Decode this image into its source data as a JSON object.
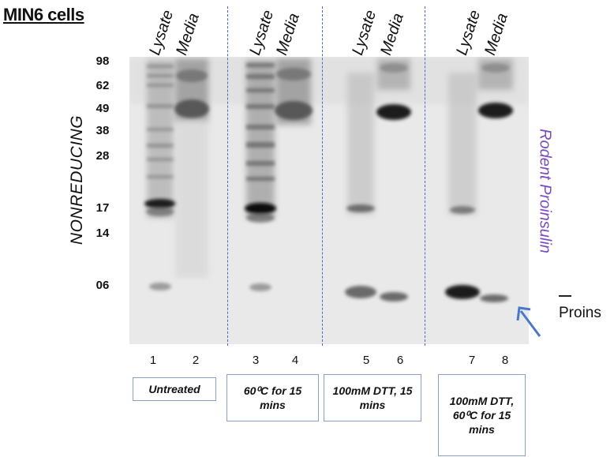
{
  "title": "MIN6 cells",
  "lane_headers": [
    {
      "lane": 1,
      "label": "Lysate"
    },
    {
      "lane": 2,
      "label": "Media"
    },
    {
      "lane": 3,
      "label": "Lysate"
    },
    {
      "lane": 4,
      "label": "Media"
    },
    {
      "lane": 5,
      "label": "Lysate"
    },
    {
      "lane": 6,
      "label": "Media"
    },
    {
      "lane": 7,
      "label": "Lysate"
    },
    {
      "lane": 8,
      "label": "Media"
    }
  ],
  "mw_markers": [
    "98",
    "62",
    "49",
    "38",
    "28",
    "17",
    "14",
    "06"
  ],
  "side_label_left": "NONREDUCING",
  "side_label_right": "Rodent Proinsulin",
  "band_label": "Proins",
  "lane_numbers": [
    "1",
    "2",
    "3",
    "4",
    "5",
    "6",
    "7",
    "8"
  ],
  "conditions": [
    {
      "label": "Untreated",
      "lanes": [
        1,
        2
      ]
    },
    {
      "label": "60⁰C for 15 mins",
      "lanes": [
        3,
        4
      ]
    },
    {
      "label": "100mM DTT, 15 mins",
      "lanes": [
        5,
        6
      ]
    },
    {
      "label": "100mM DTT, 60⁰C for 15 mins",
      "lanes": [
        7,
        8
      ]
    }
  ],
  "colors": {
    "divider": "#4a68c8",
    "arrow": "#4a78c8",
    "rodent_label": "#7a4cc0"
  },
  "arrow_icon": "arrow-up-left-icon"
}
